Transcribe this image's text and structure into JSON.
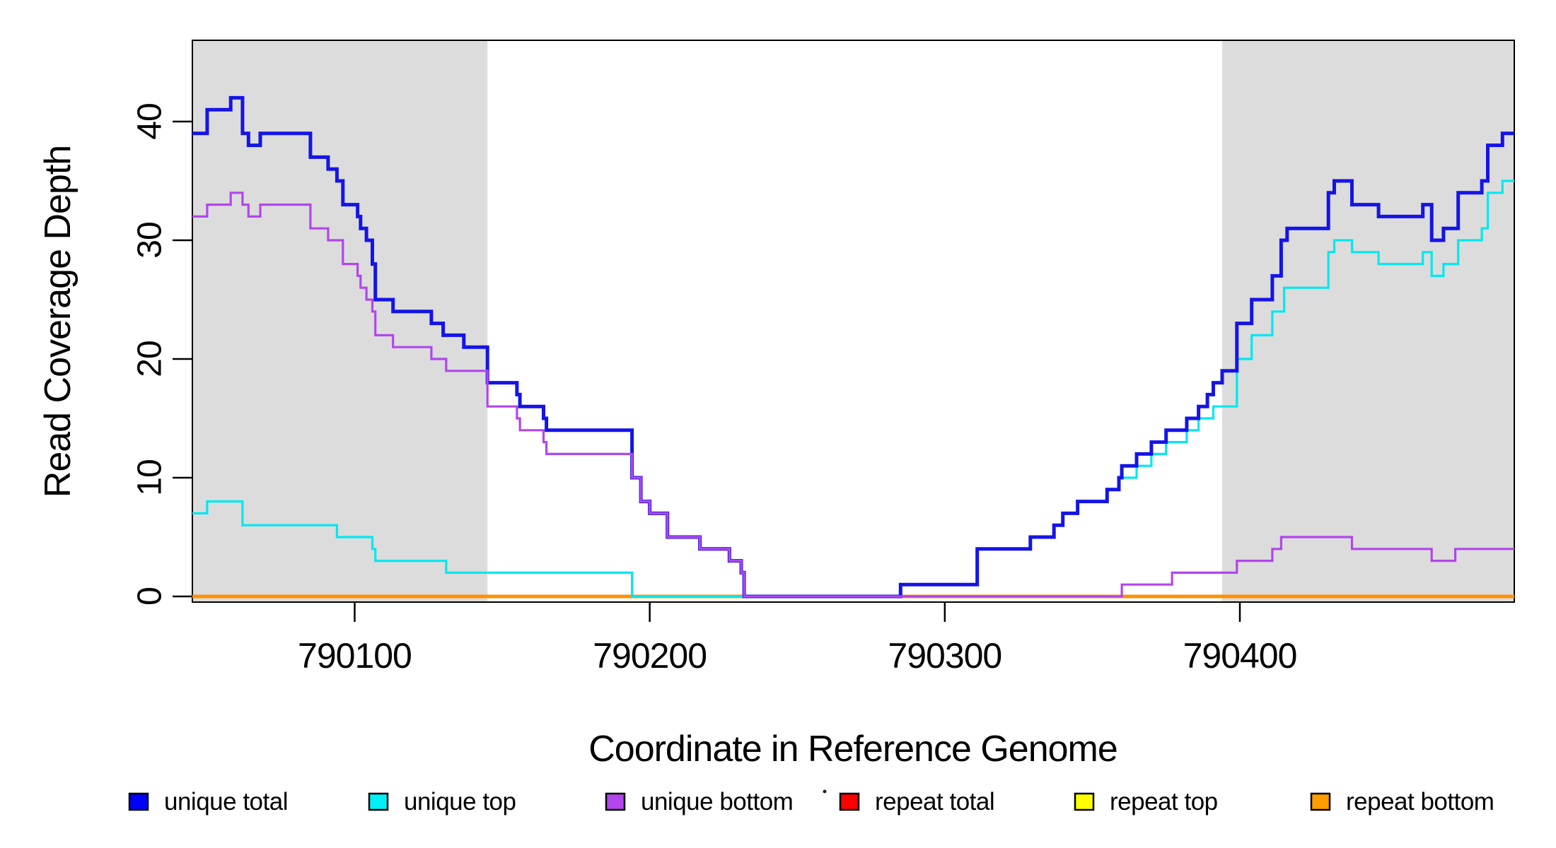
{
  "figure": {
    "background": "#ffffff"
  },
  "chart_data": {
    "type": "line",
    "subtype": "step",
    "title": "",
    "xlabel": "Coordinate in Reference Genome",
    "ylabel": "Read Coverage Depth",
    "xlim": [
      790045,
      790493
    ],
    "ylim": [
      0,
      47
    ],
    "x_ticks": [
      "790100",
      "790200",
      "790300",
      "790400"
    ],
    "x_tick_values": [
      790100,
      790200,
      790300,
      790400
    ],
    "y_ticks": [
      "0",
      "10",
      "20",
      "30",
      "40"
    ],
    "y_tick_values": [
      0,
      10,
      20,
      30,
      40
    ],
    "grid": false,
    "legend_position": "bottom",
    "shaded_regions": [
      {
        "x0": 790045,
        "x1": 790145,
        "color": "#DCDCDC"
      },
      {
        "x0": 790394,
        "x1": 790493,
        "color": "#DCDCDC"
      }
    ],
    "series": [
      {
        "name": "repeat total",
        "color": "#FF0000",
        "width": 3,
        "points": [
          [
            790045,
            0
          ]
        ]
      },
      {
        "name": "repeat top",
        "color": "#FFFF00",
        "width": 3,
        "points": [
          [
            790045,
            0
          ]
        ]
      },
      {
        "name": "repeat bottom",
        "color": "#FF9100",
        "width": 5,
        "points": [
          [
            790045,
            0
          ]
        ]
      },
      {
        "name": "unique top",
        "color": "#00E8F0",
        "width": 3.2,
        "points": [
          [
            790045,
            7
          ],
          [
            790050,
            8
          ],
          [
            790062,
            6
          ],
          [
            790094,
            5
          ],
          [
            790106,
            4
          ],
          [
            790107,
            3
          ],
          [
            790131,
            2
          ],
          [
            790194,
            0
          ],
          [
            790285,
            1
          ],
          [
            790311,
            4
          ],
          [
            790329,
            5
          ],
          [
            790337,
            6
          ],
          [
            790340,
            7
          ],
          [
            790345,
            8
          ],
          [
            790355,
            9
          ],
          [
            790359,
            10
          ],
          [
            790365,
            11
          ],
          [
            790370,
            12
          ],
          [
            790375,
            13
          ],
          [
            790382,
            14
          ],
          [
            790386,
            15
          ],
          [
            790391,
            16
          ],
          [
            790399,
            20
          ],
          [
            790404,
            22
          ],
          [
            790411,
            24
          ],
          [
            790415,
            26
          ],
          [
            790430,
            29
          ],
          [
            790432,
            30
          ],
          [
            790438,
            29
          ],
          [
            790447,
            28
          ],
          [
            790462,
            29
          ],
          [
            790465,
            27
          ],
          [
            790469,
            28
          ],
          [
            790474,
            30
          ],
          [
            790482,
            31
          ],
          [
            790484,
            34
          ],
          [
            790489,
            35
          ]
        ]
      },
      {
        "name": "unique total",
        "color": "#1414E8",
        "width": 5,
        "points": [
          [
            790045,
            39
          ],
          [
            790050,
            41
          ],
          [
            790058,
            42
          ],
          [
            790062,
            39
          ],
          [
            790064,
            38
          ],
          [
            790068,
            39
          ],
          [
            790085,
            37
          ],
          [
            790091,
            36
          ],
          [
            790094,
            35
          ],
          [
            790096,
            33
          ],
          [
            790101,
            32
          ],
          [
            790102,
            31
          ],
          [
            790104,
            30
          ],
          [
            790106,
            28
          ],
          [
            790107,
            25
          ],
          [
            790113,
            24
          ],
          [
            790126,
            23
          ],
          [
            790130,
            22
          ],
          [
            790137,
            21
          ],
          [
            790145,
            18
          ],
          [
            790155,
            17
          ],
          [
            790156,
            16
          ],
          [
            790164,
            15
          ],
          [
            790165,
            14
          ],
          [
            790194,
            10
          ],
          [
            790197,
            8
          ],
          [
            790200,
            7
          ],
          [
            790206,
            5
          ],
          [
            790217,
            4
          ],
          [
            790227,
            3
          ],
          [
            790231,
            2
          ],
          [
            790232,
            0
          ],
          [
            790285,
            1
          ],
          [
            790311,
            4
          ],
          [
            790329,
            5
          ],
          [
            790337,
            6
          ],
          [
            790340,
            7
          ],
          [
            790345,
            8
          ],
          [
            790355,
            9
          ],
          [
            790359,
            10
          ],
          [
            790360,
            11
          ],
          [
            790365,
            12
          ],
          [
            790370,
            13
          ],
          [
            790375,
            14
          ],
          [
            790382,
            15
          ],
          [
            790386,
            16
          ],
          [
            790389,
            17
          ],
          [
            790391,
            18
          ],
          [
            790394,
            19
          ],
          [
            790399,
            23
          ],
          [
            790404,
            25
          ],
          [
            790411,
            27
          ],
          [
            790414,
            30
          ],
          [
            790416,
            31
          ],
          [
            790430,
            34
          ],
          [
            790432,
            35
          ],
          [
            790438,
            33
          ],
          [
            790447,
            32
          ],
          [
            790462,
            33
          ],
          [
            790465,
            30
          ],
          [
            790469,
            31
          ],
          [
            790474,
            34
          ],
          [
            790482,
            35
          ],
          [
            790484,
            38
          ],
          [
            790489,
            39
          ]
        ]
      },
      {
        "name": "unique bottom",
        "color": "#B246EC",
        "width": 3.2,
        "points": [
          [
            790045,
            32
          ],
          [
            790050,
            33
          ],
          [
            790058,
            34
          ],
          [
            790062,
            33
          ],
          [
            790064,
            32
          ],
          [
            790068,
            33
          ],
          [
            790085,
            31
          ],
          [
            790091,
            30
          ],
          [
            790096,
            28
          ],
          [
            790101,
            27
          ],
          [
            790102,
            26
          ],
          [
            790104,
            25
          ],
          [
            790106,
            24
          ],
          [
            790107,
            22
          ],
          [
            790113,
            21
          ],
          [
            790126,
            20
          ],
          [
            790131,
            19
          ],
          [
            790145,
            16
          ],
          [
            790155,
            15
          ],
          [
            790156,
            14
          ],
          [
            790164,
            13
          ],
          [
            790165,
            12
          ],
          [
            790194,
            10
          ],
          [
            790197,
            8
          ],
          [
            790200,
            7
          ],
          [
            790206,
            5
          ],
          [
            790217,
            4
          ],
          [
            790227,
            3
          ],
          [
            790231,
            2
          ],
          [
            790232,
            0
          ],
          [
            790360,
            1
          ],
          [
            790377,
            2
          ],
          [
            790399,
            3
          ],
          [
            790411,
            4
          ],
          [
            790414,
            5
          ],
          [
            790438,
            4
          ],
          [
            790465,
            3
          ],
          [
            790473,
            4
          ]
        ]
      }
    ],
    "annotations": [
      {
        "type": "dot",
        "note": "small stray dot left of repeat total legend swatch"
      }
    ]
  },
  "legend": {
    "items": [
      {
        "label": "unique total",
        "color": "#0000FF"
      },
      {
        "label": "unique top",
        "color": "#00F0F5"
      },
      {
        "label": "unique bottom",
        "color": "#B246EC"
      },
      {
        "label": "repeat total",
        "color": "#FF0000"
      },
      {
        "label": "repeat top",
        "color": "#FFFF00"
      },
      {
        "label": "repeat bottom",
        "color": "#FF9D00"
      }
    ]
  }
}
